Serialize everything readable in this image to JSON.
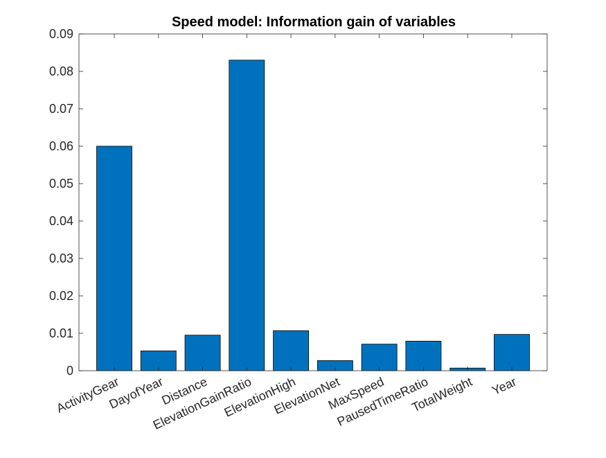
{
  "chart_data": {
    "type": "bar",
    "title": "Speed model: Information gain of variables",
    "xlabel": "",
    "ylabel": "",
    "categories": [
      "ActivityGear",
      "DayofYear",
      "Distance",
      "ElevationGainRatio",
      "ElevationHigh",
      "ElevationNet",
      "MaxSpeed",
      "PausedTimeRatio",
      "TotalWeight",
      "Year"
    ],
    "values": [
      0.06,
      0.0053,
      0.0095,
      0.083,
      0.0107,
      0.0027,
      0.0071,
      0.0079,
      0.0007,
      0.0097
    ],
    "ylim": [
      0,
      0.09
    ],
    "yticks": [
      0,
      0.01,
      0.02,
      0.03,
      0.04,
      0.05,
      0.06,
      0.07,
      0.08,
      0.09
    ],
    "ytick_labels": [
      "0",
      "0.01",
      "0.02",
      "0.03",
      "0.04",
      "0.05",
      "0.06",
      "0.07",
      "0.08",
      "0.09"
    ],
    "grid": false,
    "legend": "none",
    "bar_color": "#0072BD"
  }
}
